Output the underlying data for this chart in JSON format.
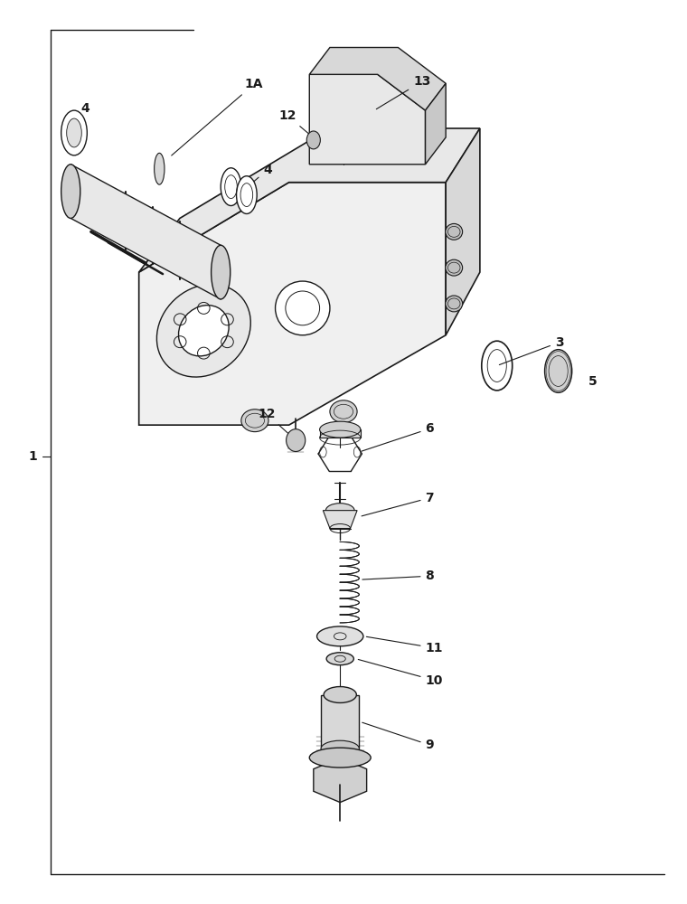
{
  "bg_color": "#ffffff",
  "line_color": "#1a1a1a",
  "fig_width": 7.6,
  "fig_height": 10.0,
  "dpi": 100
}
